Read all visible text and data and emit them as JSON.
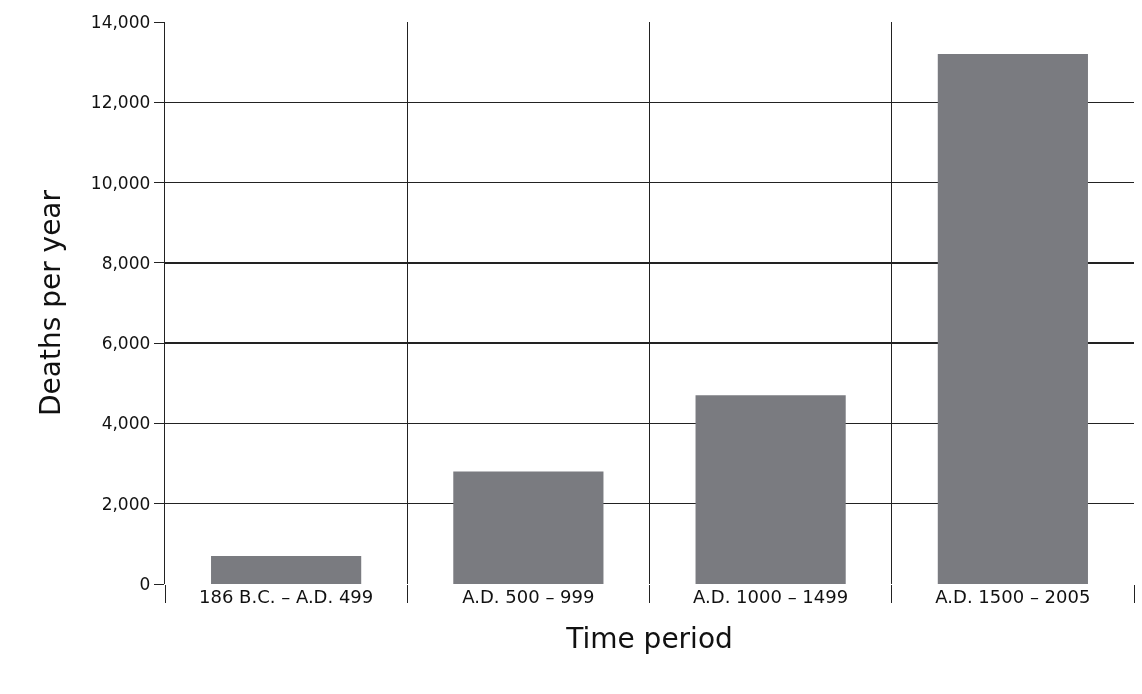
{
  "chart_data": {
    "type": "bar",
    "xlabel": "Time period",
    "ylabel": "Deaths per year",
    "categories": [
      "186 B.C. – A.D. 499",
      "A.D. 500 – 999",
      "A.D. 1000 – 1499",
      "A.D. 1500 – 2005"
    ],
    "values": [
      700,
      2800,
      4700,
      13200
    ],
    "color": "#7a7b80",
    "ylim": [
      0,
      14000
    ],
    "yticks": [
      {
        "value": 0,
        "label": "0"
      },
      {
        "value": 2000,
        "label": "2,000"
      },
      {
        "value": 4000,
        "label": "4,000"
      },
      {
        "value": 6000,
        "label": "6,000"
      },
      {
        "value": 8000,
        "label": "8,000"
      },
      {
        "value": 10000,
        "label": "10,000"
      },
      {
        "value": 12000,
        "label": "12,000"
      },
      {
        "value": 14000,
        "label": "14,000"
      }
    ],
    "grid": true
  }
}
